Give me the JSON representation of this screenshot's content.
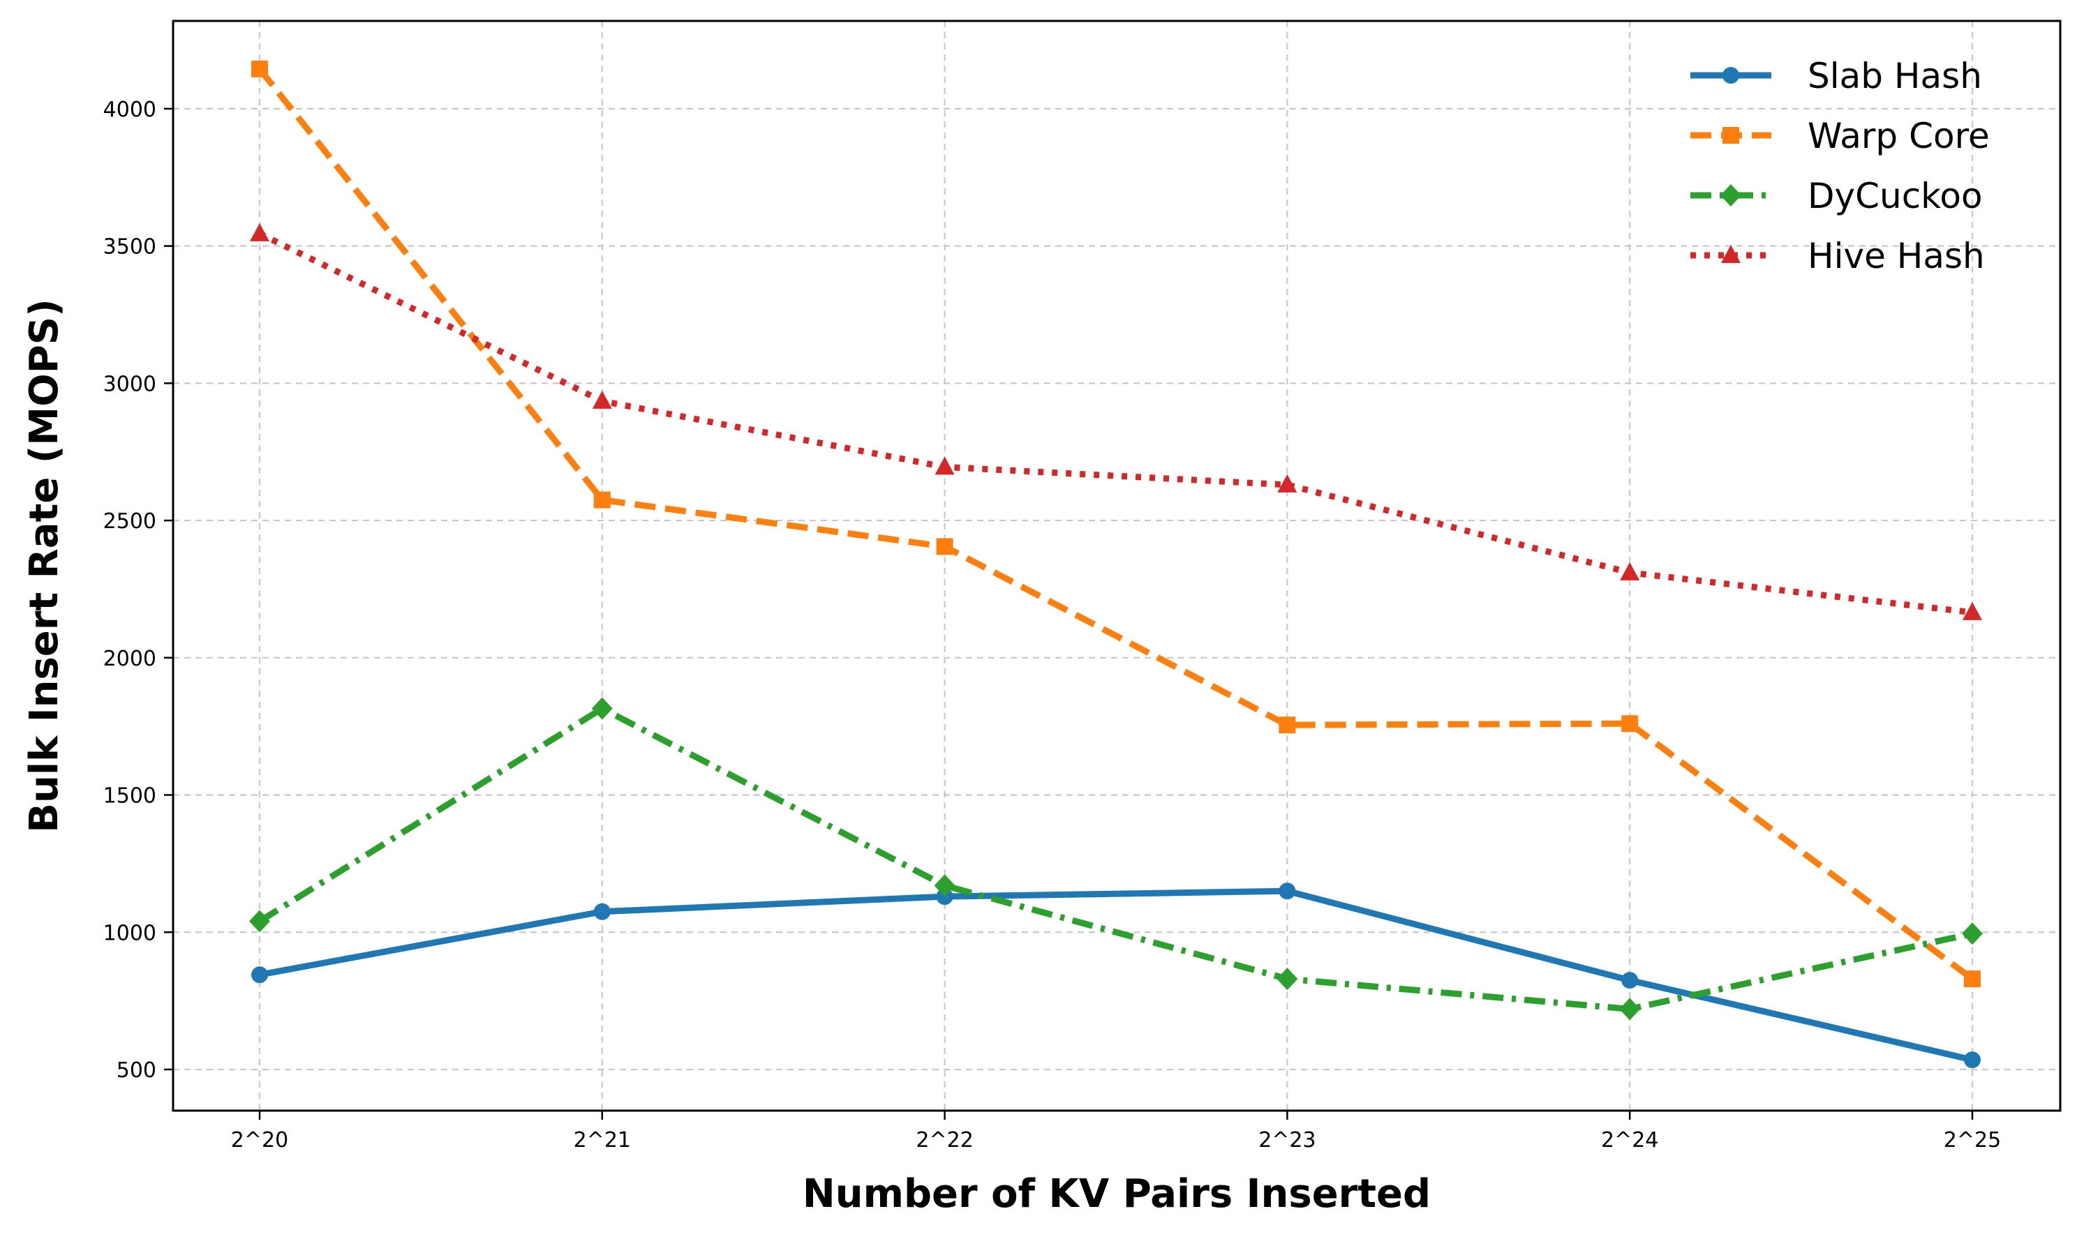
{
  "chart_data": {
    "type": "line",
    "title": "",
    "xlabel": "Number of KV Pairs Inserted",
    "ylabel": "Bulk Insert Rate (MOPS)",
    "categories": [
      "2^20",
      "2^21",
      "2^22",
      "2^23",
      "2^24",
      "2^25"
    ],
    "ylim": [
      350,
      4320
    ],
    "yticks": [
      500,
      1000,
      1500,
      2000,
      2500,
      3000,
      3500,
      4000
    ],
    "grid": true,
    "legend_position": "top-right",
    "series": [
      {
        "name": "Slab Hash",
        "values": [
          845,
          1075,
          1130,
          1150,
          825,
          535
        ],
        "color": "#1f77b4",
        "marker": "circle",
        "dash": "solid"
      },
      {
        "name": "Warp Core",
        "values": [
          4145,
          2575,
          2405,
          1755,
          1760,
          830
        ],
        "color": "#ff7f0e",
        "marker": "square",
        "dash": "dashed"
      },
      {
        "name": "DyCuckoo",
        "values": [
          1040,
          1815,
          1170,
          830,
          720,
          995
        ],
        "color": "#2ca02c",
        "marker": "diamond",
        "dash": "dashdot"
      },
      {
        "name": "Hive Hash",
        "values": [
          3545,
          2935,
          2695,
          2630,
          2310,
          2165
        ],
        "color": "#d62728",
        "marker": "triangle",
        "dash": "dotted"
      }
    ]
  }
}
